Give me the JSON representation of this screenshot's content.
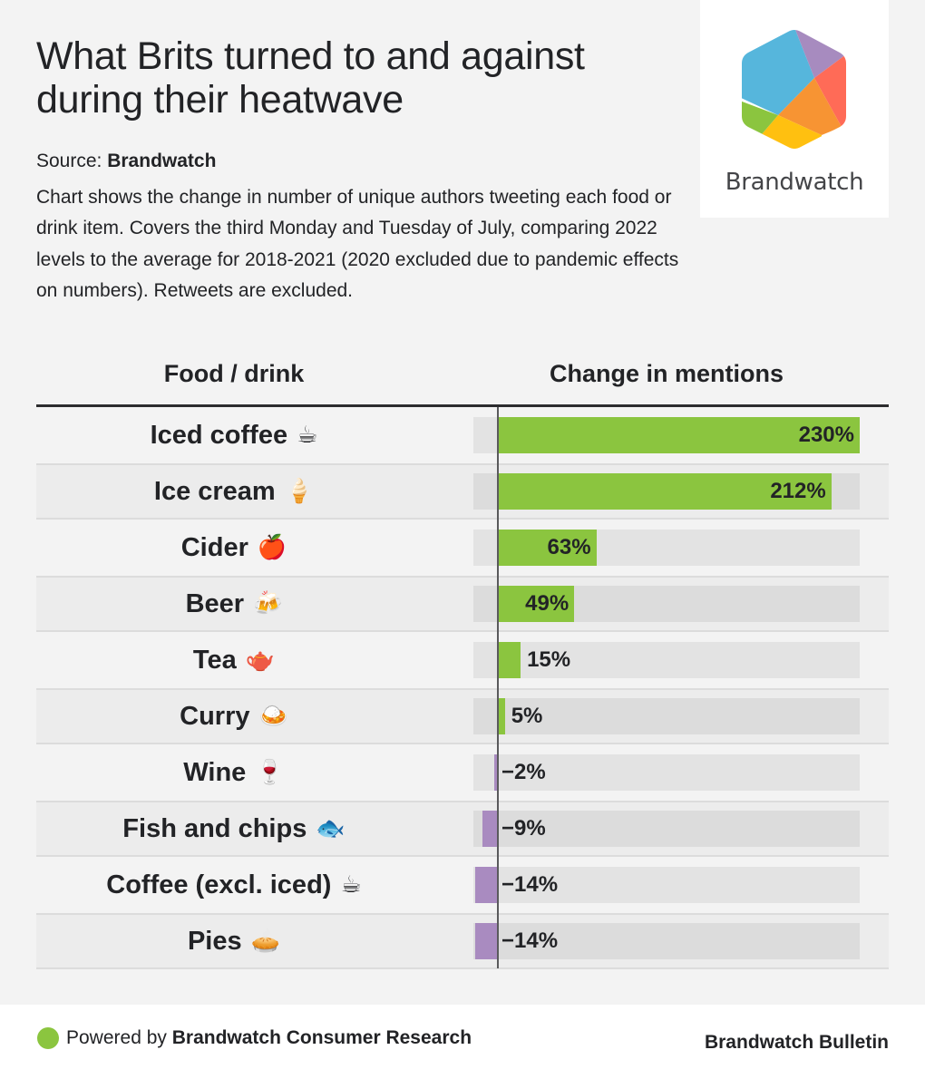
{
  "header": {
    "title": "What Brits turned to and against during their heatwave",
    "source_prefix": "Source:",
    "source_name": "Brandwatch",
    "description": "Chart shows the change in number of unique authors tweeting each food or drink item. Covers the third Monday and Tuesday of July, comparing 2022 levels to the average for 2018-2021 (2020 excluded due to pandemic effects on numbers). Retweets are excluded."
  },
  "logo": {
    "wordmark": "Brandwatch",
    "colors": {
      "blue": "#56b6dc",
      "purple": "#a78bbf",
      "red": "#ff6b57",
      "orange": "#f79433",
      "yellow": "#ffc010",
      "green": "#8bc53f"
    }
  },
  "chart_data": {
    "type": "bar",
    "orientation": "horizontal",
    "title": "What Brits turned to and against during their heatwave",
    "column_headers": [
      "Food / drink",
      "Change in mentions"
    ],
    "categories": [
      "Iced coffee",
      "Ice cream",
      "Cider",
      "Beer",
      "Tea",
      "Curry",
      "Wine",
      "Fish and chips",
      "Coffee (excl. iced)",
      "Pies"
    ],
    "emoji": [
      "☕",
      "🍦",
      "🍎",
      "🍻",
      "🫖",
      "🍛",
      "🍷",
      "🐟",
      "☕",
      "🥧"
    ],
    "values": [
      230,
      212,
      63,
      49,
      15,
      5,
      -2,
      -9,
      -14,
      -14
    ],
    "value_labels": [
      "230%",
      "212%",
      "63%",
      "49%",
      "15%",
      "5%",
      "−2%",
      "−9%",
      "−14%",
      "−14%"
    ],
    "unit": "%",
    "xlim": [
      -15,
      230
    ],
    "grid": false,
    "colors": {
      "positive": "#8bc53f",
      "negative": "#a98bc0",
      "track": "#e3e3e3"
    }
  },
  "footer": {
    "powered_prefix": "Powered by",
    "powered_name": "Brandwatch Consumer Research",
    "brand": "Brandwatch Bulletin",
    "dot_color": "#8bc53f"
  }
}
